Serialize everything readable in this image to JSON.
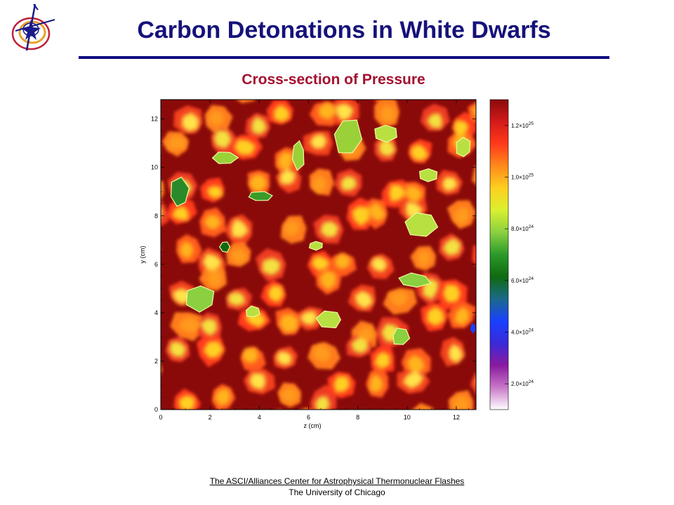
{
  "slide": {
    "title": "Carbon Detonations in White Dwarfs",
    "subtitle": "Cross-section of Pressure"
  },
  "logo": {
    "icon": "flash-center-logo",
    "colors": [
      "#1a1a8a",
      "#e8a02a",
      "#c0203a"
    ]
  },
  "chart_data": {
    "type": "heatmap",
    "quantity": "pressure",
    "xlabel": "z (cm)",
    "ylabel": "y (cm)",
    "xlim": [
      0,
      12.8
    ],
    "ylim": [
      0,
      12.8
    ],
    "x_ticks": [
      "0",
      "2",
      "4",
      "6",
      "8",
      "10",
      "12"
    ],
    "y_ticks": [
      "0",
      "2",
      "4",
      "6",
      "8",
      "10",
      "12"
    ],
    "colorbar": {
      "range": [
        1e+24,
        1.3e+25
      ],
      "ticks": [
        {
          "value": 2e+24,
          "mantissa": "2.0",
          "exponent": "24"
        },
        {
          "value": 4e+24,
          "mantissa": "4.0",
          "exponent": "24"
        },
        {
          "value": 6e+24,
          "mantissa": "6.0",
          "exponent": "24"
        },
        {
          "value": 8e+24,
          "mantissa": "8.0",
          "exponent": "24"
        },
        {
          "value": 1e+25,
          "mantissa": "1.0",
          "exponent": "25"
        },
        {
          "value": 1.2e+25,
          "mantissa": "1.2",
          "exponent": "25"
        }
      ],
      "colors": [
        "#ffffff",
        "#c878c8",
        "#8a1aa0",
        "#3a2ad8",
        "#1a40ff",
        "#1a6a8a",
        "#106a10",
        "#2a9a2a",
        "#8ad040",
        "#d8f030",
        "#ffd020",
        "#ff8a1a",
        "#ff3a1a",
        "#d41a1a",
        "#8a0a0a"
      ]
    }
  },
  "footer": {
    "link": "The ASCI/Alliances Center for Astrophysical Thermonuclear Flashes",
    "institution": "The University of Chicago"
  }
}
